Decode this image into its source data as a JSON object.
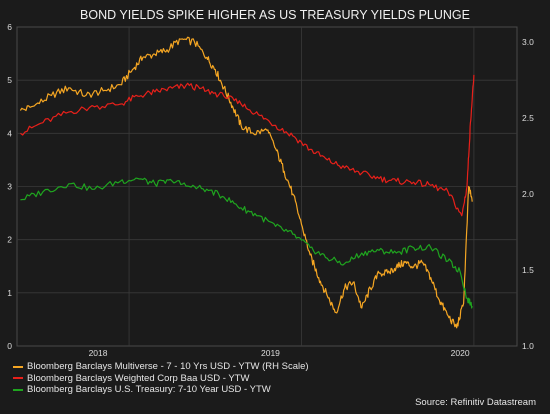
{
  "chart_data": {
    "type": "line",
    "title": "BOND YIELDS SPIKE HIGHER AS US TREASURY YIELDS PLUNGE",
    "x_ticks": [
      "2018",
      "2019",
      "2020"
    ],
    "xlim": [
      2017.35,
      2020.25
    ],
    "ylim_left": [
      0,
      6
    ],
    "ylim_right": [
      1.0,
      3.1
    ],
    "yticks_left": [
      0,
      1,
      2,
      3,
      4,
      5,
      6
    ],
    "yticks_right": [
      "1.0",
      "1.5",
      "2.0",
      "2.5",
      "3.0"
    ],
    "grid": true,
    "legend_position": "bottom-left",
    "source": "Source: Refinitiv Datastream",
    "series": [
      {
        "name": "Bloomberg Barclays Multiverse - 7 - 10 Yrs USD - YTW (RH Scale)",
        "axis": "right",
        "color": "#f5a623",
        "x": [
          2017.37,
          2017.45,
          2017.55,
          2017.65,
          2017.75,
          2017.85,
          2017.95,
          2018.02,
          2018.08,
          2018.15,
          2018.22,
          2018.3,
          2018.38,
          2018.45,
          2018.5,
          2018.55,
          2018.6,
          2018.65,
          2018.72,
          2018.8,
          2018.85,
          2018.9,
          2018.95,
          2019.0,
          2019.05,
          2019.1,
          2019.15,
          2019.2,
          2019.25,
          2019.3,
          2019.35,
          2019.4,
          2019.45,
          2019.5,
          2019.55,
          2019.6,
          2019.65,
          2019.7,
          2019.75,
          2019.8,
          2019.85,
          2019.9,
          2019.94,
          2019.97,
          2019.99
        ],
        "y": [
          2.55,
          2.58,
          2.65,
          2.7,
          2.65,
          2.68,
          2.72,
          2.82,
          2.9,
          2.92,
          2.95,
          3.02,
          3.0,
          2.9,
          2.82,
          2.7,
          2.58,
          2.45,
          2.4,
          2.42,
          2.3,
          2.15,
          2.0,
          1.8,
          1.6,
          1.45,
          1.33,
          1.22,
          1.38,
          1.42,
          1.25,
          1.38,
          1.48,
          1.48,
          1.52,
          1.55,
          1.52,
          1.55,
          1.45,
          1.3,
          1.2,
          1.12,
          1.28,
          2.05,
          1.95
        ]
      },
      {
        "name": "Bloomberg Barclays Weighted Corp Baa USD - YTW",
        "axis": "left",
        "color": "#e8201a",
        "x": [
          2017.37,
          2017.5,
          2017.65,
          2017.8,
          2017.95,
          2018.05,
          2018.15,
          2018.25,
          2018.35,
          2018.45,
          2018.55,
          2018.65,
          2018.75,
          2018.85,
          2018.95,
          2019.05,
          2019.15,
          2019.25,
          2019.35,
          2019.45,
          2019.55,
          2019.65,
          2019.75,
          2019.85,
          2019.93,
          2019.96,
          2019.98,
          2020.0
        ],
        "y": [
          4.0,
          4.2,
          4.4,
          4.5,
          4.55,
          4.7,
          4.78,
          4.85,
          4.9,
          4.8,
          4.7,
          4.55,
          4.35,
          4.15,
          3.95,
          3.7,
          3.5,
          3.35,
          3.25,
          3.15,
          3.1,
          3.08,
          3.02,
          2.9,
          2.45,
          3.0,
          4.2,
          5.1
        ]
      },
      {
        "name": "Bloomberg Barclays U.S. Treasury: 7-10 Year USD - YTW",
        "axis": "left",
        "color": "#1fa51f",
        "x": [
          2017.37,
          2017.5,
          2017.65,
          2017.8,
          2017.95,
          2018.05,
          2018.15,
          2018.25,
          2018.35,
          2018.45,
          2018.55,
          2018.65,
          2018.75,
          2018.85,
          2018.95,
          2019.05,
          2019.15,
          2019.25,
          2019.35,
          2019.45,
          2019.55,
          2019.65,
          2019.75,
          2019.85,
          2019.92,
          2019.96,
          2019.99
        ],
        "y": [
          2.75,
          2.9,
          3.05,
          2.95,
          3.1,
          3.15,
          3.05,
          3.1,
          3.0,
          2.95,
          2.8,
          2.6,
          2.45,
          2.25,
          2.1,
          1.85,
          1.65,
          1.55,
          1.75,
          1.8,
          1.75,
          1.85,
          1.85,
          1.6,
          1.4,
          0.9,
          0.75
        ]
      }
    ]
  }
}
